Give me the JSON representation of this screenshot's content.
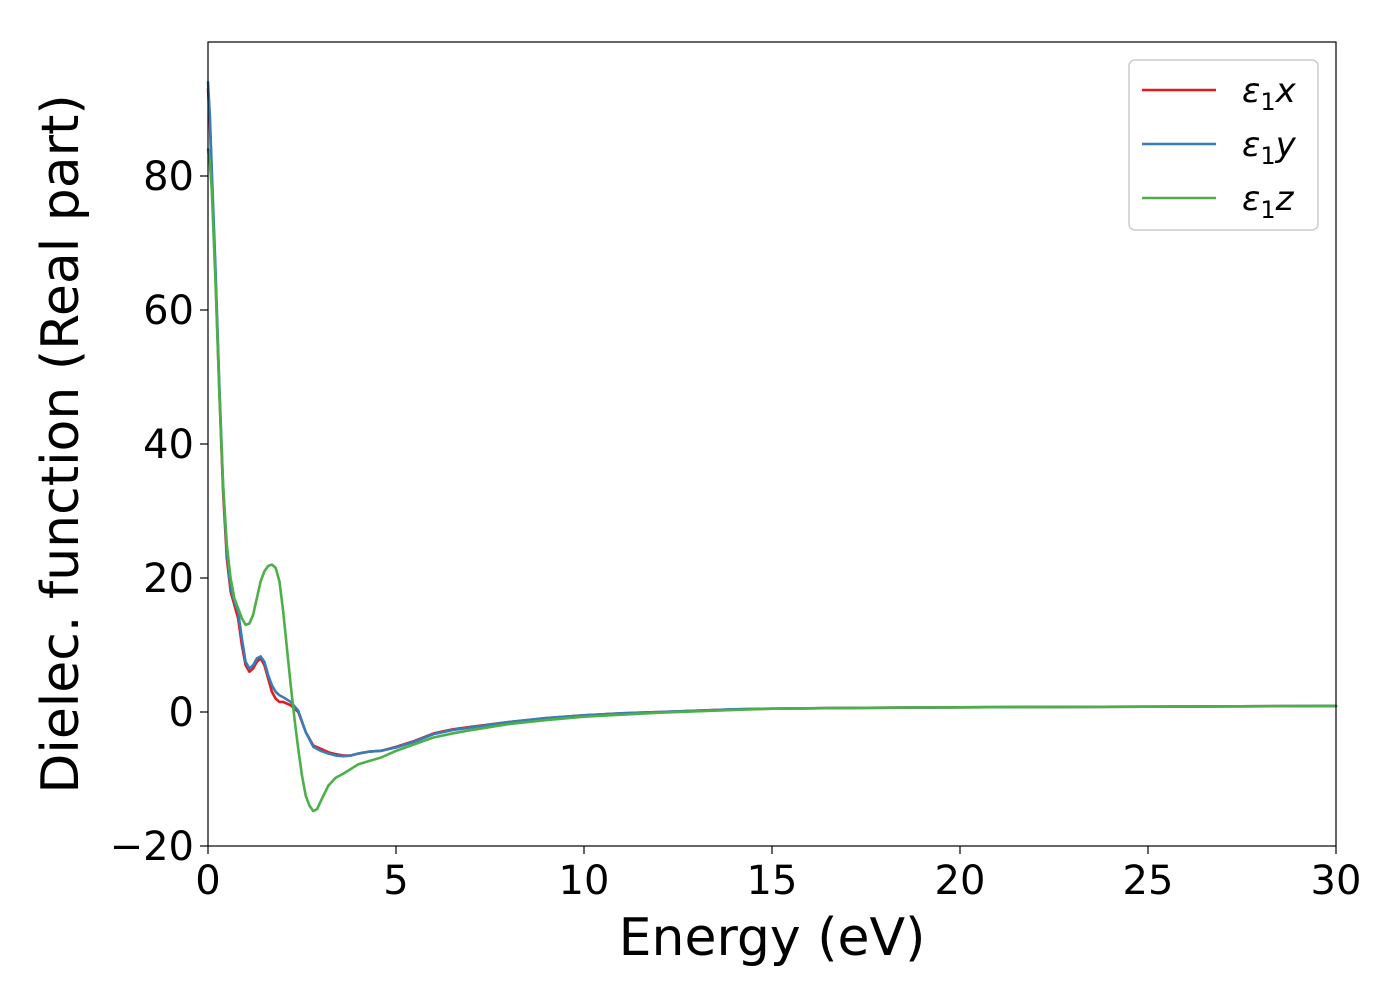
{
  "chart_data": {
    "type": "line",
    "title": "",
    "xlabel": "Energy (eV)",
    "ylabel": "Dielec. function (Real part)",
    "xlim": [
      0,
      30
    ],
    "ylim": [
      -20,
      100
    ],
    "xticks": [
      0,
      5,
      10,
      15,
      20,
      25,
      30
    ],
    "xtick_labels": [
      "0",
      "5",
      "10",
      "15",
      "20",
      "25",
      "30"
    ],
    "yticks": [
      -20,
      0,
      20,
      40,
      60,
      80
    ],
    "ytick_labels": [
      "−20",
      "0",
      "20",
      "40",
      "60",
      "80"
    ],
    "grid": false,
    "legend_position": "top-right",
    "series": [
      {
        "name": "ε1x",
        "legend_base": "ε",
        "legend_sub": "1",
        "legend_var": "x",
        "color": "#e41a1c",
        "x": [
          0.0,
          0.05,
          0.1,
          0.2,
          0.3,
          0.4,
          0.5,
          0.6,
          0.7,
          0.8,
          0.9,
          1.0,
          1.1,
          1.2,
          1.3,
          1.4,
          1.5,
          1.6,
          1.7,
          1.8,
          1.9,
          2.0,
          2.2,
          2.4,
          2.6,
          2.8,
          3.0,
          3.2,
          3.4,
          3.6,
          3.8,
          4.0,
          4.3,
          4.6,
          5.0,
          5.5,
          6.0,
          6.5,
          7.0,
          8.0,
          9.0,
          10.0,
          11.0,
          12.0,
          13.0,
          14.0,
          15.0,
          17.0,
          20.0,
          25.0,
          30.0
        ],
        "y": [
          93,
          88,
          80,
          65,
          48,
          33,
          23,
          18,
          16,
          14,
          10,
          7,
          6,
          6.5,
          7.5,
          8,
          7,
          5,
          3,
          2,
          1.5,
          1.5,
          1,
          0,
          -3,
          -5,
          -5.5,
          -6,
          -6.3,
          -6.5,
          -6.5,
          -6.2,
          -5.9,
          -5.8,
          -5.2,
          -4.3,
          -3.2,
          -2.6,
          -2.2,
          -1.5,
          -0.9,
          -0.5,
          -0.2,
          0,
          0.2,
          0.4,
          0.5,
          0.6,
          0.7,
          0.8,
          0.9
        ]
      },
      {
        "name": "ε1y",
        "legend_base": "ε",
        "legend_sub": "1",
        "legend_var": "y",
        "color": "#377eb8",
        "x": [
          0.0,
          0.05,
          0.1,
          0.2,
          0.3,
          0.4,
          0.5,
          0.6,
          0.7,
          0.8,
          0.9,
          1.0,
          1.1,
          1.2,
          1.3,
          1.4,
          1.5,
          1.6,
          1.7,
          1.8,
          1.9,
          2.0,
          2.2,
          2.4,
          2.6,
          2.8,
          3.0,
          3.2,
          3.4,
          3.6,
          3.8,
          4.0,
          4.3,
          4.6,
          5.0,
          5.5,
          6.0,
          6.5,
          7.0,
          8.0,
          9.0,
          10.0,
          11.0,
          12.0,
          13.0,
          14.0,
          15.0,
          17.0,
          20.0,
          25.0,
          30.0
        ],
        "y": [
          94,
          89,
          81,
          66,
          49,
          34,
          24,
          18.5,
          16.5,
          15,
          11,
          7.5,
          6.5,
          7,
          8,
          8.3,
          7.5,
          5.5,
          4,
          3,
          2.5,
          2.2,
          1.5,
          0.2,
          -3,
          -5.2,
          -5.8,
          -6.2,
          -6.5,
          -6.6,
          -6.5,
          -6.2,
          -5.9,
          -5.8,
          -5.3,
          -4.4,
          -3.3,
          -2.7,
          -2.3,
          -1.5,
          -0.9,
          -0.5,
          -0.2,
          0,
          0.2,
          0.4,
          0.5,
          0.6,
          0.7,
          0.8,
          0.9
        ]
      },
      {
        "name": "ε1z",
        "legend_base": "ε",
        "legend_sub": "1",
        "legend_var": "z",
        "color": "#4daf4a",
        "x": [
          0.0,
          0.05,
          0.1,
          0.2,
          0.3,
          0.4,
          0.5,
          0.6,
          0.7,
          0.8,
          0.9,
          1.0,
          1.1,
          1.2,
          1.3,
          1.4,
          1.5,
          1.6,
          1.7,
          1.8,
          1.9,
          2.0,
          2.1,
          2.2,
          2.3,
          2.4,
          2.5,
          2.6,
          2.7,
          2.8,
          2.9,
          3.0,
          3.2,
          3.4,
          3.6,
          3.8,
          4.0,
          4.3,
          4.6,
          5.0,
          5.5,
          6.0,
          6.5,
          7.0,
          8.0,
          9.0,
          10.0,
          11.0,
          12.0,
          13.0,
          14.0,
          15.0,
          17.0,
          20.0,
          25.0,
          30.0
        ],
        "y": [
          84,
          82,
          78,
          64,
          48,
          34,
          25,
          20,
          17,
          15.5,
          14,
          13,
          13.2,
          14.5,
          17,
          19.5,
          21,
          21.8,
          22,
          21.5,
          19.5,
          15,
          9.5,
          4,
          -1,
          -5.5,
          -9.5,
          -12.5,
          -14,
          -14.8,
          -14.5,
          -13.3,
          -11,
          -9.8,
          -9.2,
          -8.5,
          -7.8,
          -7.3,
          -6.8,
          -5.8,
          -4.8,
          -3.8,
          -3.2,
          -2.7,
          -1.8,
          -1.2,
          -0.7,
          -0.4,
          -0.1,
          0.1,
          0.3,
          0.5,
          0.6,
          0.7,
          0.8,
          0.9
        ]
      }
    ]
  }
}
